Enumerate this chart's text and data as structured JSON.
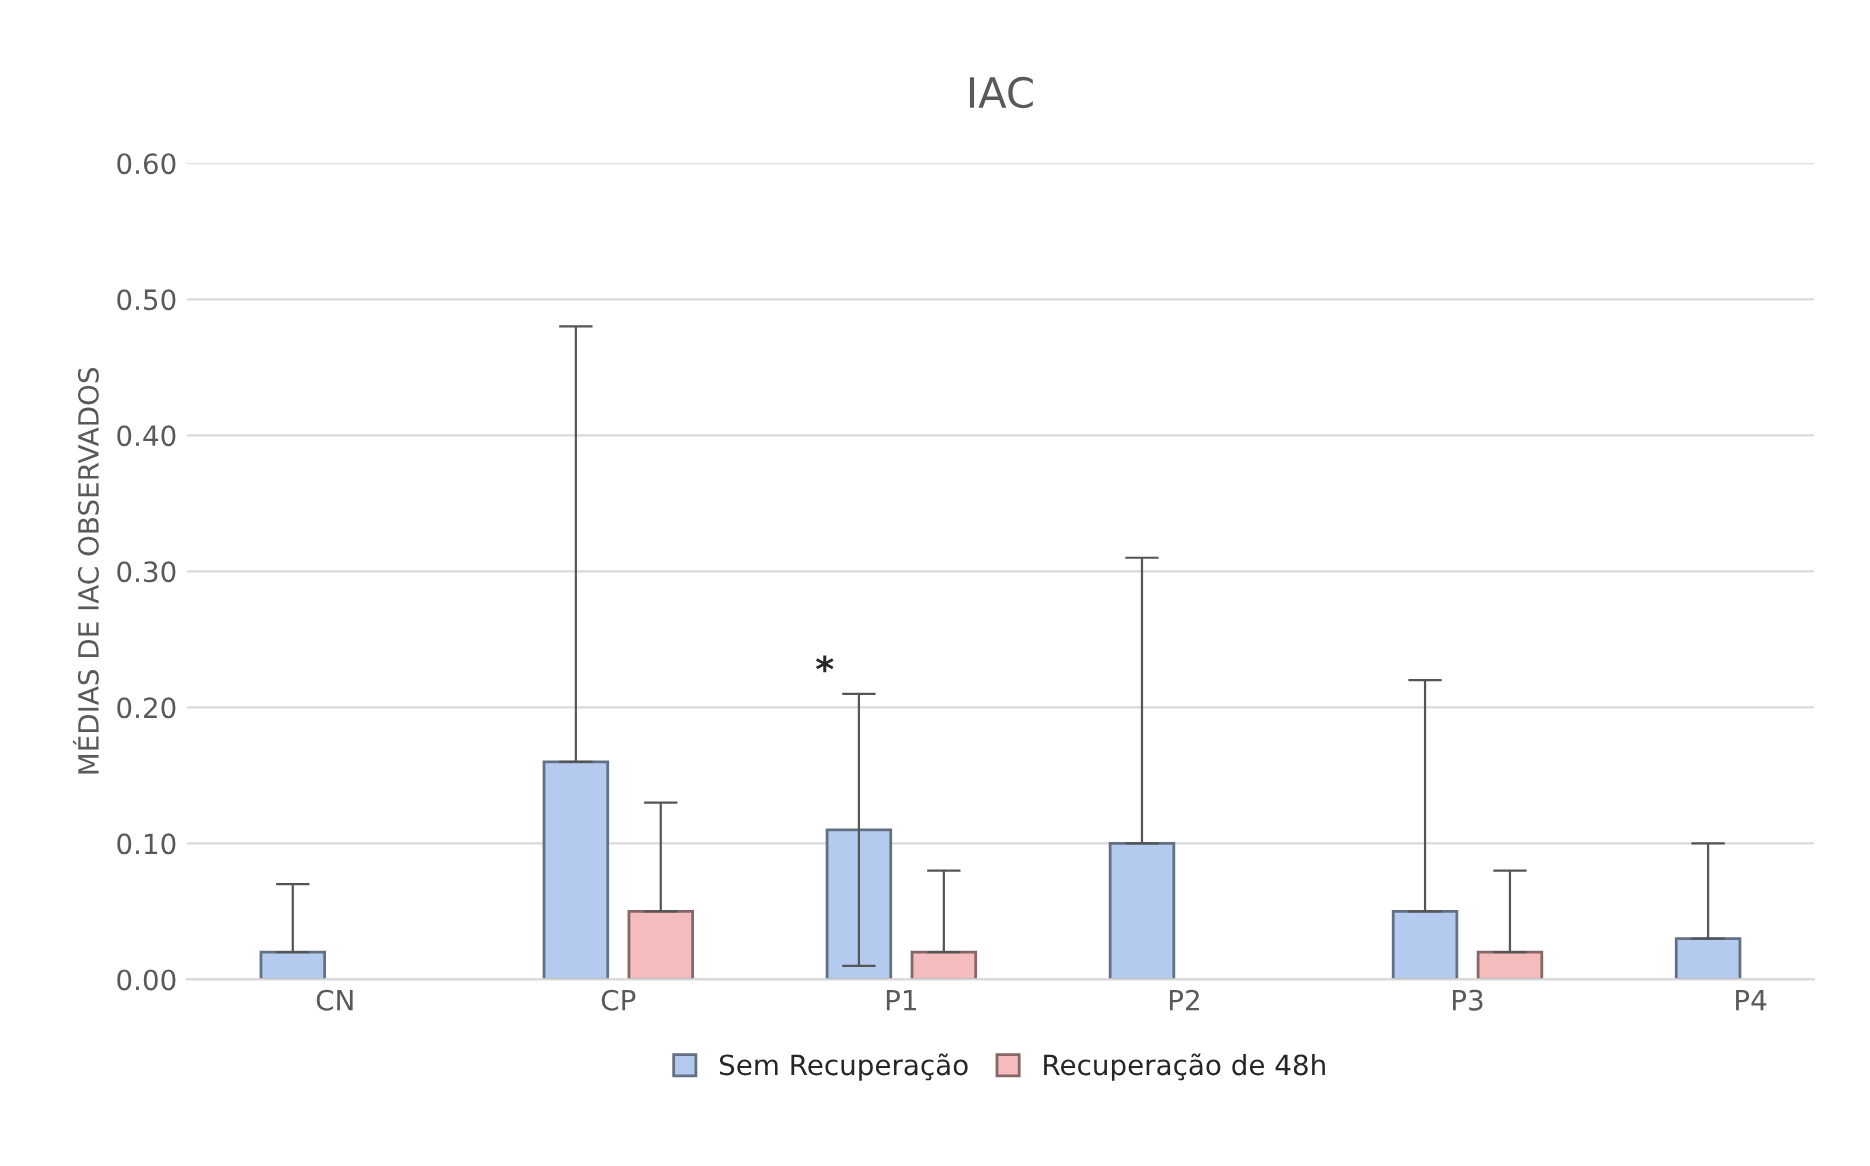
{
  "chart_data": {
    "type": "bar",
    "title": "IAC",
    "ylabel": "MÉDIAS DE IAC OBSERVADOS",
    "categories": [
      "CN",
      "CP",
      "P1",
      "P2",
      "P3",
      "P4"
    ],
    "series": [
      {
        "name": "Sem Recuperação",
        "color": "#b4cbef",
        "values": [
          0.02,
          0.16,
          0.11,
          0.1,
          0.05,
          0.03
        ],
        "errors": [
          [
            0.02,
            0.07
          ],
          [
            0.16,
            0.48
          ],
          [
            0.01,
            0.21
          ],
          [
            0.1,
            0.31
          ],
          [
            0.05,
            0.22
          ],
          [
            0.03,
            0.1
          ]
        ]
      },
      {
        "name": "Recuperação de 48h",
        "color": "#f4bcbc",
        "values": [
          null,
          0.05,
          0.02,
          null,
          0.02,
          null
        ],
        "errors": [
          null,
          [
            0.05,
            0.13
          ],
          [
            0.02,
            0.08
          ],
          null,
          [
            0.02,
            0.08
          ],
          null
        ]
      }
    ],
    "ylim": [
      0,
      0.6
    ],
    "yticks": [
      {
        "value": 0,
        "label": "0.00"
      },
      {
        "value": 0.1,
        "label": "0.10"
      },
      {
        "value": 0.2,
        "label": "0.20"
      },
      {
        "value": 0.3,
        "label": "0.30"
      },
      {
        "value": 0.4,
        "label": "0.40"
      },
      {
        "value": 0.5,
        "label": "0.50"
      },
      {
        "value": 0.6,
        "label": "0.60"
      }
    ],
    "grid": "y",
    "legend": "bottom",
    "annotations": [
      "*"
    ]
  }
}
